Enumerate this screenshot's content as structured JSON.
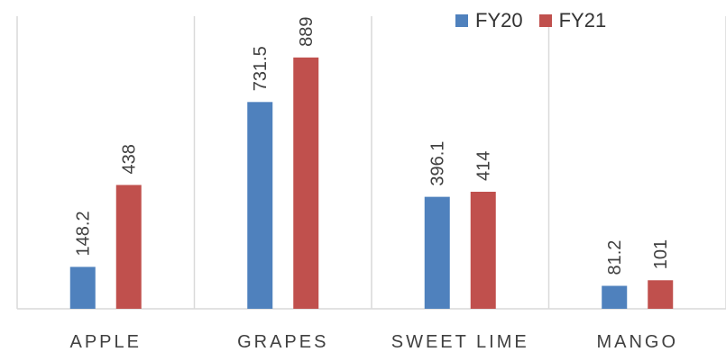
{
  "chart_data": {
    "type": "bar",
    "categories": [
      "APPLE",
      "GRAPES",
      "SWEET LIME",
      "MANGO"
    ],
    "series": [
      {
        "name": "FY20",
        "values": [
          148.2,
          731.5,
          396.1,
          81.2
        ],
        "color": "#4f81bd"
      },
      {
        "name": "FY21",
        "values": [
          438,
          889,
          414,
          101
        ],
        "color": "#c0504d"
      }
    ],
    "data_labels": [
      [
        "148.2",
        "731.5",
        "396.1",
        "81.2"
      ],
      [
        "438",
        "889",
        "414",
        "101"
      ]
    ],
    "ylim": [
      0,
      1000
    ],
    "grid": false,
    "category_separators": true,
    "legend_position": "top-right",
    "data_label_orientation": "vertical"
  }
}
